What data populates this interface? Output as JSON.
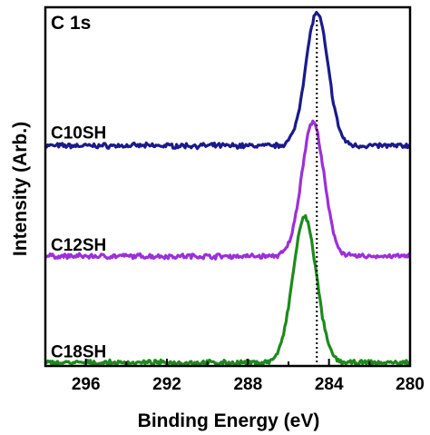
{
  "chart_data": {
    "type": "line",
    "panel_label": "C 1s",
    "xlabel": "Binding Energy (eV)",
    "ylabel": "Intensity (Arb.)",
    "xlim": [
      298,
      280
    ],
    "x_reversed": true,
    "ylim": [
      0,
      1
    ],
    "x_ticks": [
      296,
      292,
      288,
      284,
      280
    ],
    "reference_line_x": 284.6,
    "grid": false,
    "series": [
      {
        "name": "C10SH",
        "color": "#1a1a8c",
        "baseline": 0.614,
        "peak_center": 284.6,
        "peak_height": 0.37,
        "peak_width": 0.55
      },
      {
        "name": "C12SH",
        "color": "#9b30d9",
        "baseline": 0.306,
        "peak_center": 284.8,
        "peak_height": 0.374,
        "peak_width": 0.55
      },
      {
        "name": "C18SH",
        "color": "#1e8a1e",
        "baseline": 0.009,
        "peak_center": 285.2,
        "peak_height": 0.405,
        "peak_width": 0.58
      }
    ]
  }
}
